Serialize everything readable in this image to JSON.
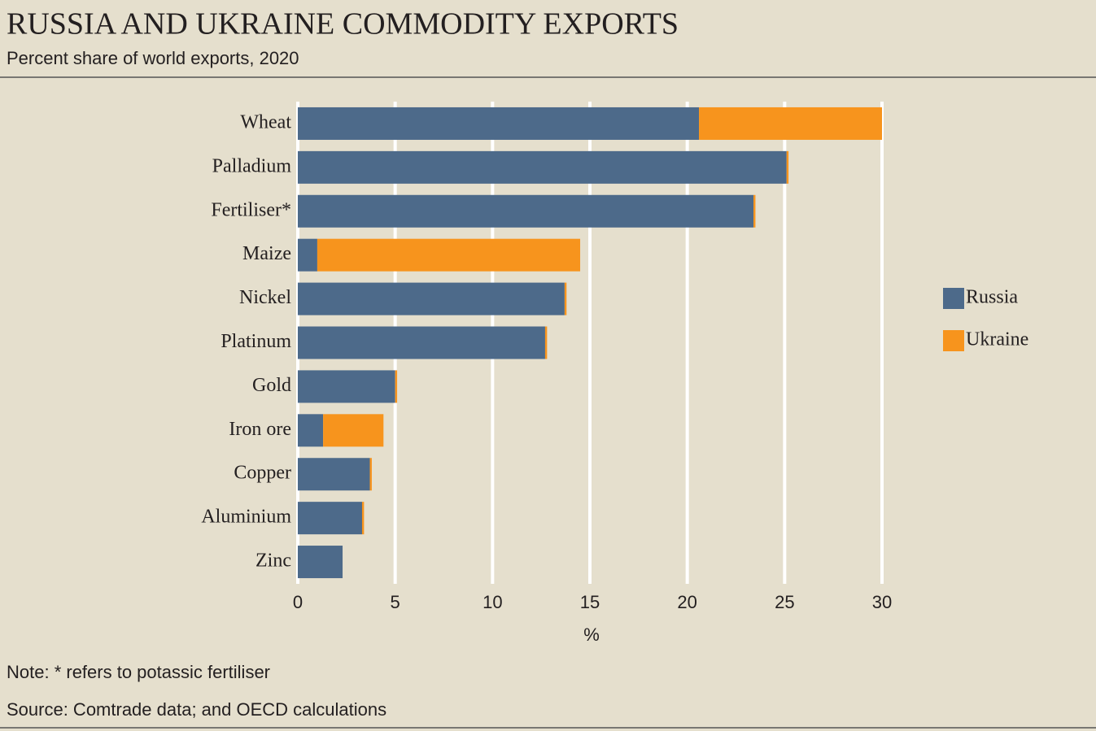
{
  "chart_data": {
    "type": "stacked-bar-horizontal",
    "title": "RUSSIA AND UKRAINE COMMODITY EXPORTS",
    "subtitle": "Percent share of world exports, 2020",
    "categories": [
      "Wheat",
      "Palladium",
      "Fertiliser*",
      "Maize",
      "Nickel",
      "Platinum",
      "Gold",
      "Iron ore",
      "Copper",
      "Aluminium",
      "Zinc"
    ],
    "series": [
      {
        "name": "Russia",
        "color": "#4d6a8a",
        "values": [
          20.6,
          25.1,
          23.4,
          1.0,
          13.7,
          12.7,
          5.0,
          1.3,
          3.7,
          3.3,
          2.3
        ]
      },
      {
        "name": "Ukraine",
        "color": "#f7941d",
        "values": [
          9.4,
          0.1,
          0.1,
          13.5,
          0.1,
          0.1,
          0.1,
          3.1,
          0.1,
          0.1,
          0
        ]
      }
    ],
    "xlim": [
      0,
      30
    ],
    "xticks": [
      0,
      5,
      10,
      15,
      20,
      25,
      30
    ],
    "grid": true,
    "xlabel": "%",
    "legend": "right",
    "note": "Note: * refers to potassic fertiliser",
    "source": "Source: Comtrade data; and OECD calculations"
  }
}
